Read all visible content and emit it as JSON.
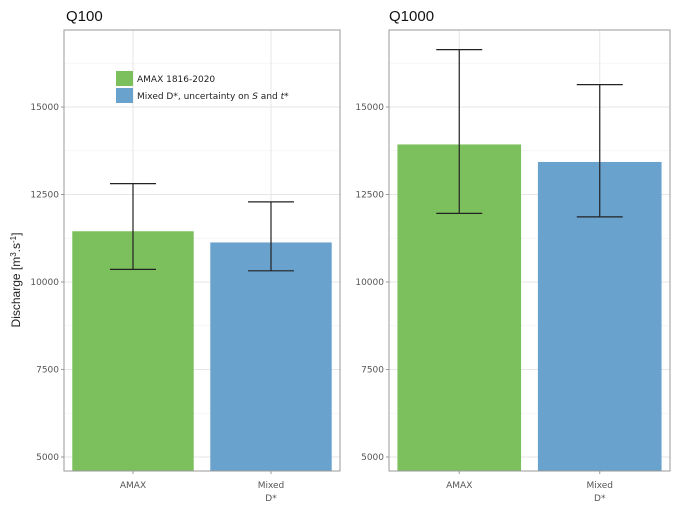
{
  "chart_data": [
    {
      "type": "bar",
      "title": "Q100",
      "categories": [
        [
          "AMAX"
        ],
        [
          "Mixed",
          "D*"
        ]
      ],
      "values": [
        11450,
        11130
      ],
      "error_low": [
        10360,
        10320
      ],
      "error_high": [
        12810,
        12290
      ],
      "colors": [
        "#7cc05d",
        "#6aa2ce"
      ],
      "ylabel": "Discharge [m3.s-1]",
      "ylim": [
        4600,
        17200
      ],
      "yticks": [
        5000,
        7500,
        10000,
        12500,
        15000
      ],
      "grid": true,
      "legend": {
        "placement": "top-left",
        "items": [
          {
            "label": "AMAX 1816-2020",
            "color": "#7cc05d"
          },
          {
            "label": "Mixed D*, uncertainty on S and t*",
            "color": "#6aa2ce"
          }
        ]
      }
    },
    {
      "type": "bar",
      "title": "Q1000",
      "categories": [
        [
          "AMAX"
        ],
        [
          "Mixed",
          "D*"
        ]
      ],
      "values": [
        13930,
        13430
      ],
      "error_low": [
        11960,
        11860
      ],
      "error_high": [
        16640,
        15640
      ],
      "colors": [
        "#7cc05d",
        "#6aa2ce"
      ],
      "ylim": [
        4600,
        17200
      ],
      "yticks": [
        5000,
        7500,
        10000,
        12500,
        15000
      ],
      "grid": true
    }
  ]
}
